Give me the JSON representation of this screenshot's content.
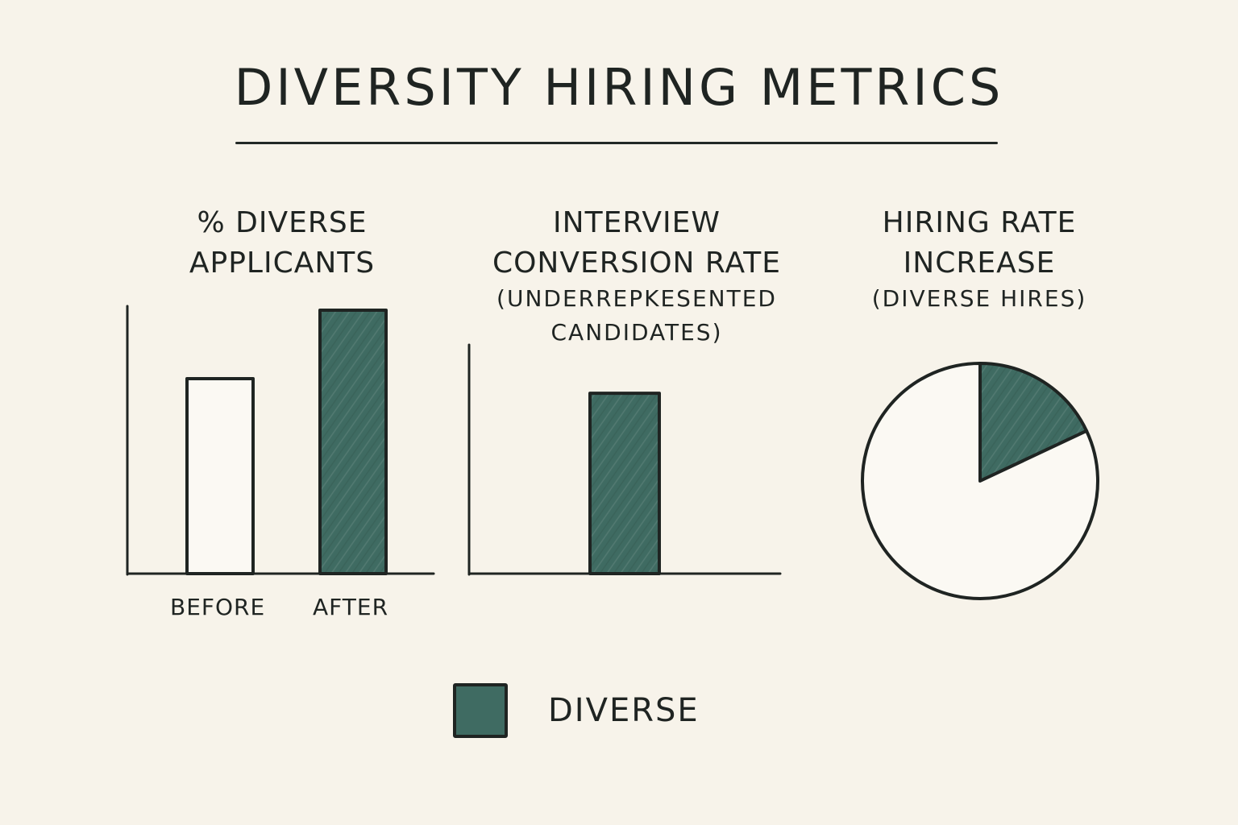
{
  "title": "DIVERSITY HIRING METRICS",
  "colors": {
    "background": "#f7f3ea",
    "diverse": "#3f6b62",
    "ink": "#1f2422",
    "empty": "#fbf9f3"
  },
  "legend": {
    "label": "DIVERSE",
    "color": "#3f6b62"
  },
  "chart_data": [
    {
      "type": "bar",
      "title_lines": [
        "% DIVERSE",
        "APPLICANTS"
      ],
      "categories": [
        "BEFORE",
        "AFTER"
      ],
      "series": [
        {
          "values": [
            74,
            100
          ],
          "colors": [
            "#fbf9f3",
            "#3f6b62"
          ]
        }
      ],
      "ylim": [
        0,
        100
      ],
      "grid": false
    },
    {
      "type": "bar",
      "title_lines": [
        "INTERVIEW",
        "CONVERSION RATE"
      ],
      "subtitle_lines": [
        "(UNDERREPKESENTED",
        "CANDIDATES)"
      ],
      "categories": [
        ""
      ],
      "series": [
        {
          "values": [
            78
          ],
          "colors": [
            "#3f6b62"
          ]
        }
      ],
      "ylim": [
        0,
        100
      ],
      "grid": false
    },
    {
      "type": "pie",
      "title_lines": [
        "HIRING RATE",
        "INCREASE"
      ],
      "subtitle_lines": [
        "(DIVERSE HIRES)"
      ],
      "slices": [
        {
          "label": "DIVERSE",
          "value": 18,
          "color": "#3f6b62"
        },
        {
          "label": "",
          "value": 82,
          "color": "#fbf9f3"
        }
      ]
    }
  ]
}
